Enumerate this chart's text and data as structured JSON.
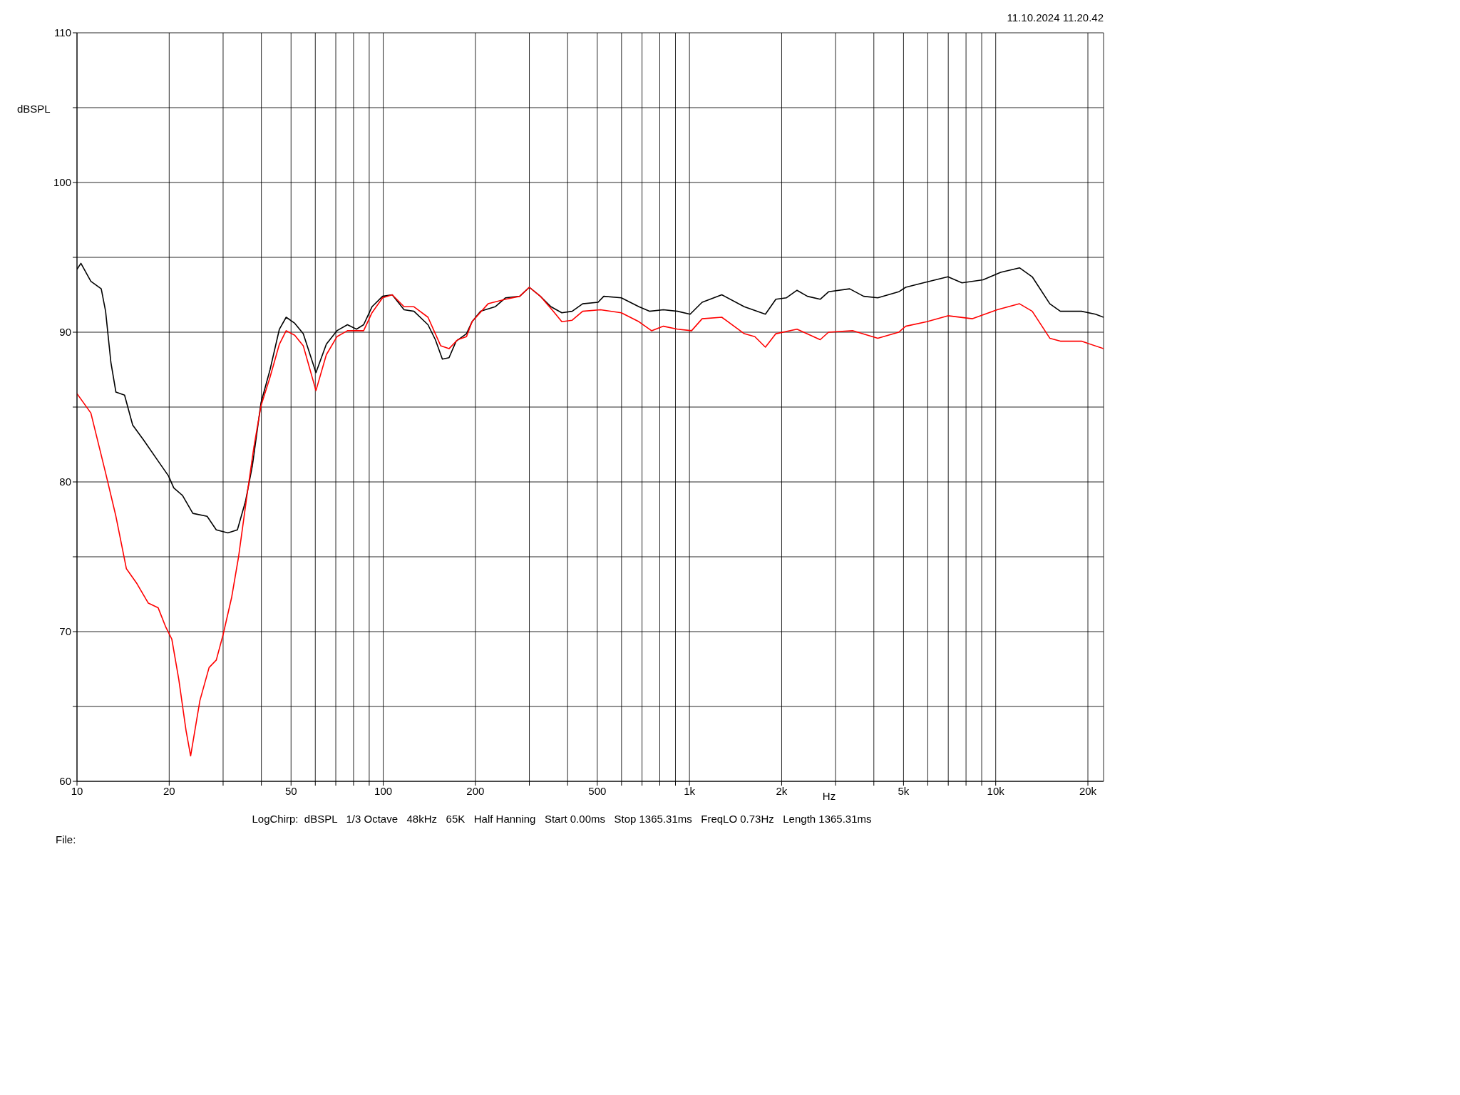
{
  "chart_data": {
    "type": "line",
    "xlabel": "Hz",
    "ylabel": "dBSPL",
    "annotations": [
      "11.10.2024 11.20.42",
      "LogChirp:  dBSPL   1/3 Octave   48kHz   65K   Half Hanning   Start 0.00ms   Stop 1365.31ms   FreqLO 0.73Hz   Length 1365.31ms",
      "File:"
    ],
    "log": "x",
    "grid": true,
    "marker": "none",
    "line_style": "solid",
    "xlim": [
      10,
      22500
    ],
    "ylim": [
      60,
      110
    ],
    "xticks": [
      10,
      {
        "value": 20,
        "label": "20"
      },
      {
        "value": 30,
        "label": null
      },
      {
        "value": 40,
        "label": null
      },
      50,
      {
        "value": 60,
        "label": null
      },
      {
        "value": 70,
        "label": null
      },
      {
        "value": 80,
        "label": null
      },
      {
        "value": 90,
        "label": null
      },
      100,
      200,
      {
        "value": 300,
        "label": null
      },
      {
        "value": 400,
        "label": null
      },
      500,
      {
        "value": 600,
        "label": null
      },
      {
        "value": 700,
        "label": null
      },
      {
        "value": 800,
        "label": null
      },
      {
        "value": 900,
        "label": null
      },
      {
        "value": 1000,
        "label": "1k"
      },
      {
        "value": 2000,
        "label": "2k"
      },
      {
        "value": 3000,
        "label": null
      },
      {
        "value": 4000,
        "label": null
      },
      {
        "value": 5000,
        "label": "5k"
      },
      {
        "value": 6000,
        "label": null
      },
      {
        "value": 7000,
        "label": null
      },
      {
        "value": 8000,
        "label": null
      },
      {
        "value": 9000,
        "label": null
      },
      {
        "value": 10000,
        "label": "10k"
      },
      {
        "value": 20000,
        "label": "20k"
      }
    ],
    "yticks": [
      60,
      {
        "value": 65,
        "label": null
      },
      70,
      {
        "value": 75,
        "label": null
      },
      80,
      {
        "value": 85,
        "label": null
      },
      90,
      {
        "value": 95,
        "label": null
      },
      100,
      {
        "value": 105,
        "label": null
      },
      110
    ],
    "series": [
      {
        "color": "#000000",
        "x": [
          10,
          10.3,
          11.1,
          12.0,
          12.4,
          12.9,
          13.4,
          14.3,
          15.2,
          16.5,
          18.4,
          19.9,
          20.7,
          22.1,
          23.9,
          26.6,
          28.5,
          31.1,
          33.4,
          35.5,
          37.4,
          39.9,
          42.7,
          45.8,
          48.2,
          51.4,
          54.8,
          60.3,
          65.2,
          70.6,
          76.4,
          81.8,
          86.3,
          91.9,
          99.5,
          107,
          117,
          126,
          140,
          148,
          156,
          164,
          173,
          187,
          195,
          208,
          232,
          251,
          279,
          300,
          326,
          353,
          383,
          414,
          448,
          503,
          525,
          599,
          684,
          740,
          822,
          914,
          1005,
          1100,
          1275,
          1510,
          1770,
          1915,
          2074,
          2245,
          2427,
          2672,
          2845,
          3334,
          3705,
          4120,
          4823,
          5081,
          5801,
          6981,
          7761,
          9095,
          10380,
          11960,
          13160,
          15020,
          16260,
          19050,
          21180,
          22500
        ],
        "values": [
          94.2,
          94.6,
          93.4,
          92.9,
          91.4,
          88.0,
          86.0,
          85.8,
          83.8,
          82.8,
          81.4,
          80.4,
          79.6,
          79.1,
          77.9,
          77.7,
          76.8,
          76.6,
          76.8,
          78.7,
          81.1,
          85.3,
          87.5,
          90.2,
          91.0,
          90.6,
          89.9,
          87.3,
          89.2,
          90.1,
          90.5,
          90.2,
          90.5,
          91.7,
          92.4,
          92.5,
          91.5,
          91.4,
          90.5,
          89.5,
          88.2,
          88.3,
          89.4,
          89.9,
          90.7,
          91.4,
          91.7,
          92.3,
          92.4,
          93.0,
          92.4,
          91.7,
          91.3,
          91.4,
          91.9,
          92.0,
          92.4,
          92.3,
          91.7,
          91.4,
          91.5,
          91.4,
          91.2,
          92.0,
          92.5,
          91.7,
          91.2,
          92.2,
          92.3,
          92.8,
          92.4,
          92.2,
          92.7,
          92.9,
          92.4,
          92.3,
          92.7,
          93.0,
          93.3,
          93.7,
          93.3,
          93.5,
          94.0,
          94.3,
          93.7,
          91.9,
          91.4,
          91.4,
          91.2,
          91.0
        ]
      },
      {
        "color": "#ff0000",
        "x": [
          10,
          11.1,
          12.4,
          13.4,
          14.5,
          15.7,
          17.1,
          18.4,
          19.5,
          20.4,
          21.5,
          22.7,
          23.5,
          25.2,
          27.0,
          28.5,
          30.0,
          32.0,
          33.7,
          35.9,
          37.8,
          39.9,
          42.7,
          45.8,
          48.2,
          51.4,
          54.8,
          60.3,
          65.2,
          70.6,
          76.4,
          86.3,
          91.9,
          99.5,
          107,
          117,
          126,
          140,
          154,
          164,
          175,
          187,
          195,
          220,
          251,
          279,
          300,
          326,
          359,
          383,
          414,
          448,
          512,
          599,
          684,
          752,
          822,
          914,
          1016,
          1100,
          1275,
          1510,
          1635,
          1770,
          1915,
          2245,
          2672,
          2845,
          3420,
          4120,
          4823,
          5081,
          5957,
          6981,
          8398,
          10110,
          11960,
          13160,
          15020,
          16260,
          19050,
          22500
        ],
        "values": [
          85.9,
          84.6,
          80.6,
          77.7,
          74.2,
          73.2,
          71.9,
          71.6,
          70.3,
          69.5,
          66.8,
          63.4,
          61.7,
          65.4,
          67.6,
          68.1,
          69.8,
          72.3,
          75.0,
          79.1,
          82.3,
          85.1,
          87.0,
          89.2,
          90.1,
          89.8,
          89.1,
          86.1,
          88.5,
          89.7,
          90.1,
          90.1,
          91.3,
          92.3,
          92.5,
          91.7,
          91.7,
          91.0,
          89.1,
          88.9,
          89.5,
          89.7,
          90.7,
          91.9,
          92.2,
          92.4,
          93.0,
          92.4,
          91.4,
          90.7,
          90.8,
          91.4,
          91.5,
          91.3,
          90.7,
          90.1,
          90.4,
          90.2,
          90.1,
          90.9,
          91.0,
          89.9,
          89.7,
          89.0,
          89.9,
          90.2,
          89.5,
          90.0,
          90.1,
          89.6,
          90.0,
          90.4,
          90.7,
          91.1,
          90.9,
          91.5,
          91.9,
          91.4,
          89.6,
          89.4,
          89.4,
          88.9
        ]
      }
    ]
  }
}
